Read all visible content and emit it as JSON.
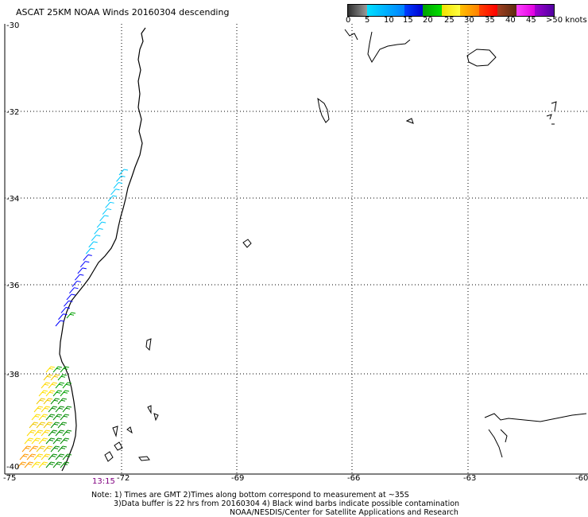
{
  "title": "ASCAT 25KM NOAA Winds 20160304 descending",
  "legend": {
    "labels": [
      "0",
      "5",
      "10",
      "15",
      "20",
      "25",
      "30",
      "35",
      "40",
      "45",
      ">50 knots"
    ],
    "colors": [
      "#404040",
      "#00c8ff",
      "#0060ff",
      "#0000ff",
      "#00c000",
      "#ffff00",
      "#ffa000",
      "#ff0000",
      "#804020",
      "#ff00ff",
      "#7800c8"
    ]
  },
  "axes": {
    "lat_labels": [
      "-30",
      "-32",
      "-34",
      "-36",
      "-38",
      "-40"
    ],
    "lon_labels": [
      "-75",
      "-72",
      "-69",
      "-66",
      "-63",
      "-60"
    ]
  },
  "time_label": "13:15",
  "notes": [
    "Note: 1) Times are GMT 2)Times along bottom correspond to measurement at ~35S",
    "3)Data buffer is 22 hrs from 20160304 4) Black wind barbs indicate possible contamination",
    "NOAA/NESDIS/Center for Satellite Applications and Research"
  ]
}
